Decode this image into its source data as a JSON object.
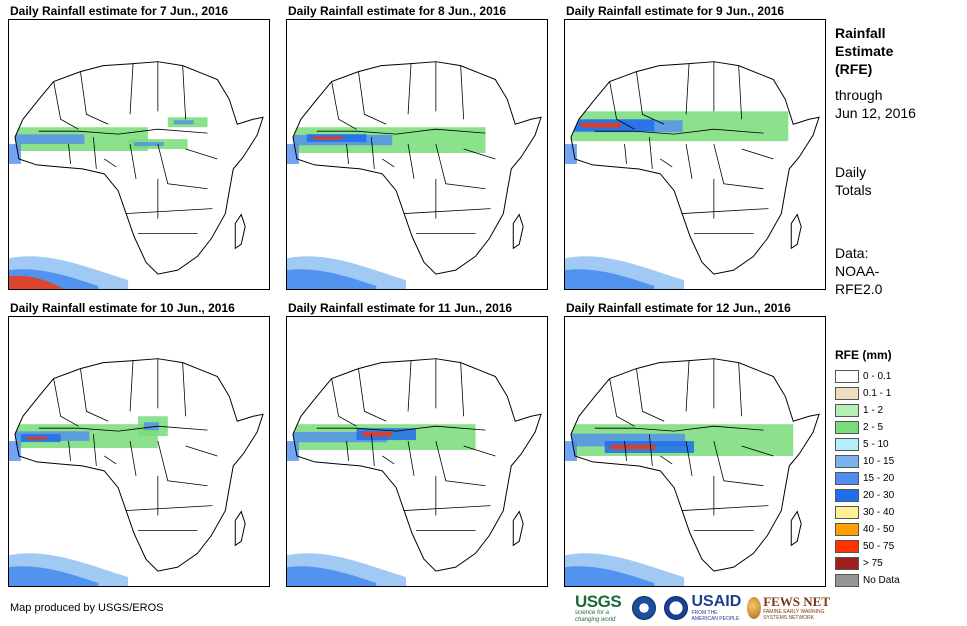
{
  "panels": [
    {
      "title": "Daily Rainfall estimate for 7 Jun., 2016"
    },
    {
      "title": "Daily Rainfall estimate for 8 Jun., 2016"
    },
    {
      "title": "Daily Rainfall estimate for 9 Jun., 2016"
    },
    {
      "title": "Daily Rainfall estimate for 10 Jun., 2016"
    },
    {
      "title": "Daily Rainfall estimate for 11 Jun., 2016"
    },
    {
      "title": "Daily Rainfall estimate for 12 Jun., 2016"
    }
  ],
  "info": {
    "title_lines": [
      "Rainfall",
      "Estimate",
      "(RFE)"
    ],
    "through_lines": [
      "through",
      "Jun 12, 2016"
    ],
    "daily_lines": [
      "Daily",
      "Totals"
    ],
    "data_lines": [
      "Data:",
      "NOAA-",
      "RFE2.0"
    ]
  },
  "legend": {
    "title": "RFE (mm)",
    "items": [
      {
        "label": "0 - 0.1",
        "color": "#ffffff"
      },
      {
        "label": "0.1 - 1",
        "color": "#f0dcc0"
      },
      {
        "label": "1 - 2",
        "color": "#b4f0b4"
      },
      {
        "label": "2 - 5",
        "color": "#78dc78"
      },
      {
        "label": "5 - 10",
        "color": "#b4f0fa"
      },
      {
        "label": "10 - 15",
        "color": "#78b4f0"
      },
      {
        "label": "15 - 20",
        "color": "#508cf0"
      },
      {
        "label": "20 - 30",
        "color": "#1e6eeb"
      },
      {
        "label": "30 - 40",
        "color": "#fff096"
      },
      {
        "label": "40 - 50",
        "color": "#ffa000"
      },
      {
        "label": "50 - 75",
        "color": "#ff3200"
      },
      {
        "label": "> 75",
        "color": "#a01e1e"
      },
      {
        "label": "No Data",
        "color": "#969696"
      }
    ]
  },
  "credit": "Map produced by USGS/EROS",
  "logos": {
    "usgs": "USGS",
    "usgs_tag": "science for a changing world",
    "usaid": "USAID",
    "usaid_tag": "FROM THE AMERICAN PEOPLE",
    "fews": "FEWS NET",
    "fews_tag": "FAMINE EARLY WARNING SYSTEMS NETWORK"
  }
}
